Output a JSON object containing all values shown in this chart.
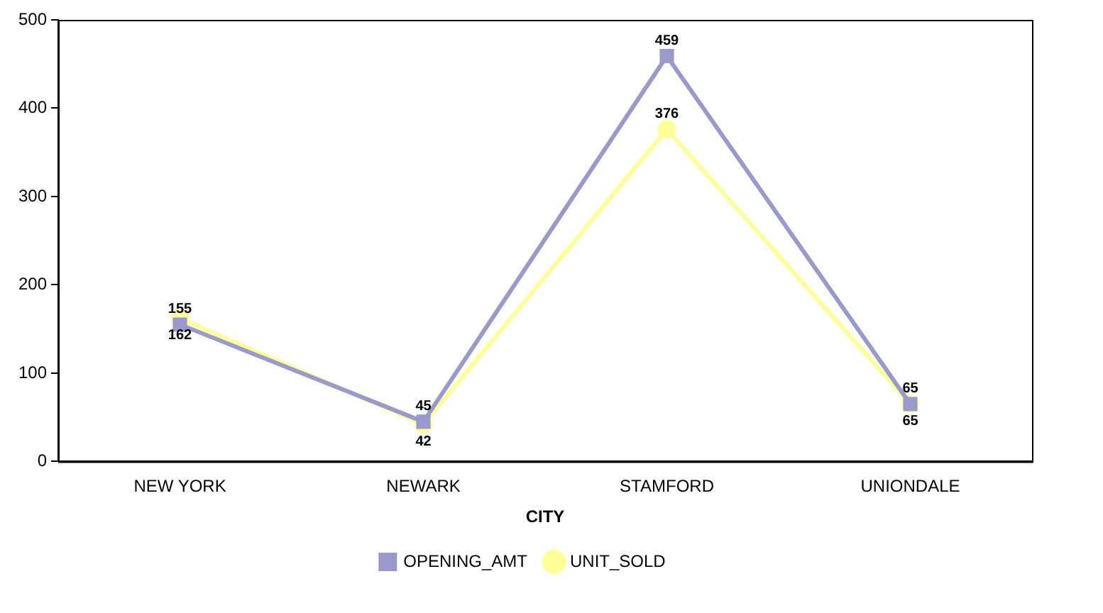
{
  "chart_data": {
    "type": "line",
    "xlabel": "CITY",
    "categories": [
      "NEW YORK",
      "NEWARK",
      "STAMFORD",
      "UNIONDALE"
    ],
    "series": [
      {
        "name": "OPENING_AMT",
        "color": "#9999cc",
        "values": [
          155,
          45,
          459,
          65
        ],
        "marker": "square"
      },
      {
        "name": "UNIT_SOLD",
        "color": "#ffff99",
        "values": [
          162,
          42,
          376,
          65
        ],
        "marker": "circle"
      }
    ],
    "ylim": [
      0,
      500
    ],
    "yticks": [
      0,
      100,
      200,
      300,
      400,
      500
    ],
    "grid": false,
    "legend": "bottom",
    "data_labels": true
  }
}
